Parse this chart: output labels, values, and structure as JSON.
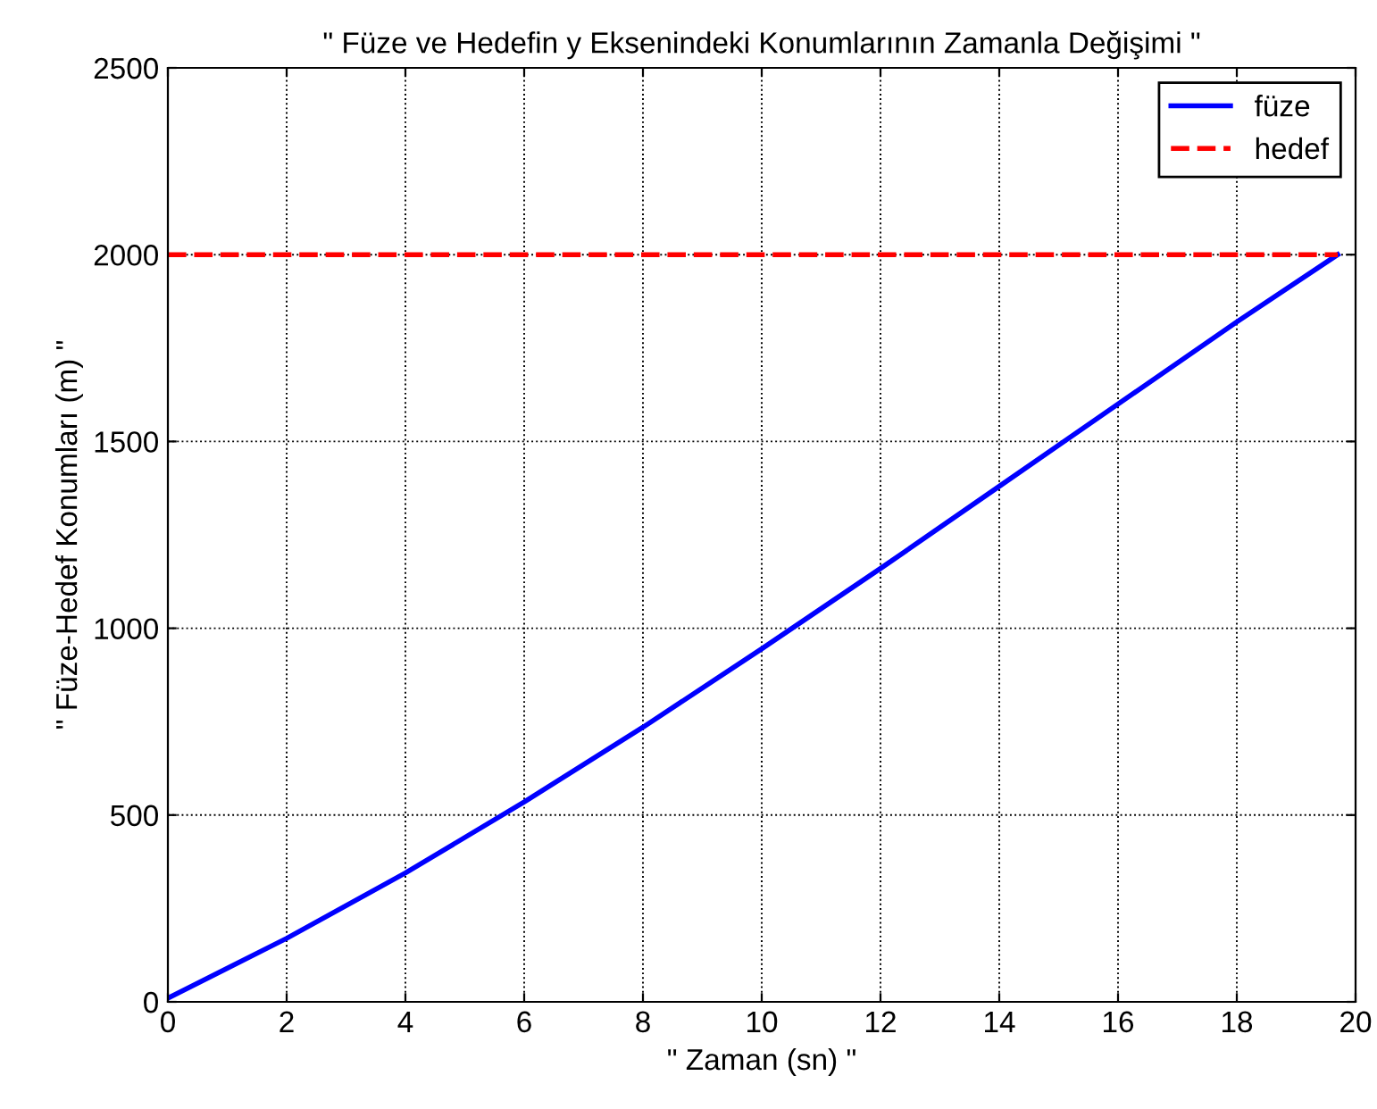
{
  "chart_data": {
    "type": "line",
    "title": "\" Füze ve Hedefin y Eksenindeki Konumlarının Zamanla Değişimi \"",
    "xlabel": "\" Zaman (sn) \"",
    "ylabel": "\" Füze-Hedef Konumları (m) \"",
    "xlim": [
      0,
      20
    ],
    "ylim": [
      0,
      2500
    ],
    "xticks": [
      0,
      2,
      4,
      6,
      8,
      10,
      12,
      14,
      16,
      18,
      20
    ],
    "yticks": [
      0,
      500,
      1000,
      1500,
      2000,
      2500
    ],
    "grid": true,
    "legend": "top right",
    "series": [
      {
        "name": "füze",
        "color": "#0000ff",
        "line_style": "solid",
        "x": [
          0,
          2,
          4,
          6,
          8,
          10,
          12,
          14,
          16,
          18,
          19.7
        ],
        "values": [
          10,
          170,
          345,
          535,
          735,
          945,
          1160,
          1380,
          1600,
          1820,
          2000
        ]
      },
      {
        "name": "hedef",
        "color": "#ff0000",
        "line_style": "dashed",
        "x": [
          0,
          19.7
        ],
        "values": [
          2000,
          2000
        ]
      }
    ]
  }
}
